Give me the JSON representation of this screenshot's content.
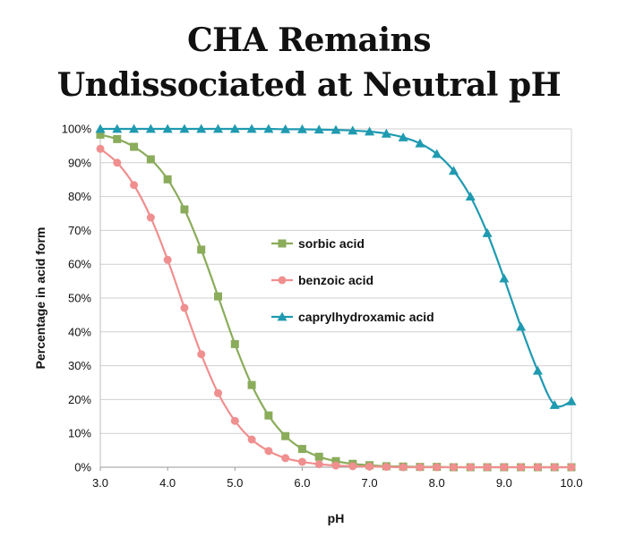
{
  "title_line1": "CHA Remains",
  "title_line2": "Undissociated at Neutral pH",
  "chart_data": {
    "type": "line",
    "title": "CHA Remains Undissociated at Neutral pH",
    "xlabel": "pH",
    "ylabel": "Percentage in acid form",
    "xlim": [
      3.0,
      10.0
    ],
    "ylim": [
      0,
      100
    ],
    "x_ticks": [
      "3.0",
      "4.0",
      "5.0",
      "6.0",
      "7.0",
      "8.0",
      "9.0",
      "10.0"
    ],
    "y_ticks": [
      "0%",
      "10%",
      "20%",
      "30%",
      "40%",
      "50%",
      "60%",
      "70%",
      "80%",
      "90%",
      "100%"
    ],
    "grid": "horizontal",
    "legend_position": "center",
    "x": [
      3.0,
      3.25,
      3.5,
      3.75,
      4.0,
      4.25,
      4.5,
      4.75,
      5.0,
      5.25,
      5.5,
      5.75,
      6.0,
      6.25,
      6.5,
      6.75,
      7.0,
      7.25,
      7.5,
      7.75,
      8.0,
      8.25,
      8.5,
      8.75,
      9.0,
      9.25,
      9.5,
      9.75,
      10.0
    ],
    "series": [
      {
        "name": "sorbic acid",
        "color": "#8aac5b",
        "marker": "square",
        "values": [
          98.3,
          97.0,
          94.7,
          91.0,
          85.1,
          76.2,
          64.3,
          50.5,
          36.4,
          24.3,
          15.3,
          9.2,
          5.4,
          3.1,
          1.8,
          1.0,
          0.6,
          0.3,
          0.2,
          0.1,
          0.1,
          0,
          0,
          0,
          0,
          0,
          0,
          0,
          0
        ]
      },
      {
        "name": "benzoic acid",
        "color": "#f08f8f",
        "marker": "circle",
        "values": [
          94.1,
          90.0,
          83.4,
          73.8,
          61.3,
          47.1,
          33.4,
          21.9,
          13.7,
          8.2,
          4.8,
          2.7,
          1.6,
          0.9,
          0.5,
          0.3,
          0.2,
          0.1,
          0,
          0,
          0,
          0,
          0,
          0,
          0,
          0,
          0,
          0,
          0
        ]
      },
      {
        "name": "caprylhydroxamic acid",
        "color": "#1f9ab0",
        "marker": "triangle",
        "values": [
          100,
          100,
          100,
          100,
          100,
          100,
          100,
          100,
          100,
          100,
          100,
          99.9,
          99.9,
          99.8,
          99.7,
          99.5,
          99.2,
          98.6,
          97.5,
          95.7,
          92.6,
          87.6,
          80.0,
          69.2,
          55.8,
          41.5,
          28.5,
          18.4,
          19.5
        ]
      }
    ]
  }
}
